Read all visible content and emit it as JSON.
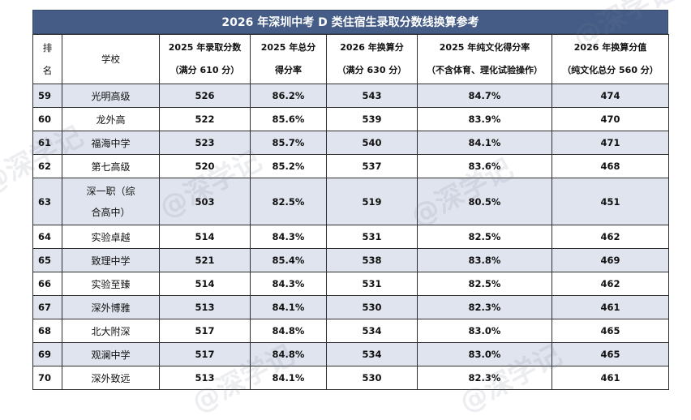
{
  "title": "2026 年深圳中考 D 类住宿生录取分数线换算参考",
  "headers": {
    "rank": [
      "排",
      "名"
    ],
    "school": "学校",
    "score2025": [
      "2025 年录取分数",
      "（满分 610 分）"
    ],
    "rate2025": [
      "2025 年总分",
      "得分率"
    ],
    "conv2026": [
      "2026 年换算分",
      "（满分 630 分）"
    ],
    "pureRate2025": [
      "2025 年纯文化得分率",
      "（不含体育、理化试验操作）"
    ],
    "pureConv2026": [
      "2026 年换算分值",
      "（纯文化总分 560 分）"
    ]
  },
  "rows": [
    {
      "rank": "59",
      "school": "光明高级",
      "score2025": "526",
      "rate2025": "86.2%",
      "conv2026": "543",
      "pureRate2025": "84.7%",
      "pureConv2026": "474"
    },
    {
      "rank": "60",
      "school": "龙外高",
      "score2025": "522",
      "rate2025": "85.6%",
      "conv2026": "539",
      "pureRate2025": "83.9%",
      "pureConv2026": "470"
    },
    {
      "rank": "61",
      "school": "福海中学",
      "score2025": "523",
      "rate2025": "85.7%",
      "conv2026": "540",
      "pureRate2025": "84.1%",
      "pureConv2026": "471"
    },
    {
      "rank": "62",
      "school": "第七高级",
      "score2025": "520",
      "rate2025": "85.2%",
      "conv2026": "537",
      "pureRate2025": "83.6%",
      "pureConv2026": "468"
    },
    {
      "rank": "63",
      "school": [
        "深一职（综",
        "合高中）"
      ],
      "score2025": "503",
      "rate2025": "82.5%",
      "conv2026": "519",
      "pureRate2025": "80.5%",
      "pureConv2026": "451"
    },
    {
      "rank": "64",
      "school": "实验卓越",
      "score2025": "514",
      "rate2025": "84.3%",
      "conv2026": "531",
      "pureRate2025": "82.5%",
      "pureConv2026": "462"
    },
    {
      "rank": "65",
      "school": "致理中学",
      "score2025": "521",
      "rate2025": "85.4%",
      "conv2026": "538",
      "pureRate2025": "83.8%",
      "pureConv2026": "469"
    },
    {
      "rank": "66",
      "school": "实验至臻",
      "score2025": "514",
      "rate2025": "84.3%",
      "conv2026": "531",
      "pureRate2025": "82.5%",
      "pureConv2026": "462"
    },
    {
      "rank": "67",
      "school": "深外博雅",
      "score2025": "513",
      "rate2025": "84.1%",
      "conv2026": "530",
      "pureRate2025": "82.3%",
      "pureConv2026": "461"
    },
    {
      "rank": "68",
      "school": "北大附深",
      "score2025": "517",
      "rate2025": "84.8%",
      "conv2026": "534",
      "pureRate2025": "83.0%",
      "pureConv2026": "465"
    },
    {
      "rank": "69",
      "school": "观澜中学",
      "score2025": "517",
      "rate2025": "84.8%",
      "conv2026": "534",
      "pureRate2025": "83.0%",
      "pureConv2026": "465"
    },
    {
      "rank": "70",
      "school": "深外致远",
      "score2025": "513",
      "rate2025": "84.1%",
      "conv2026": "530",
      "pureRate2025": "82.3%",
      "pureConv2026": "461"
    }
  ],
  "watermark": "@深学记",
  "colors": {
    "title_bg": "#445c86",
    "shaded_row": "#dfe4ee"
  }
}
